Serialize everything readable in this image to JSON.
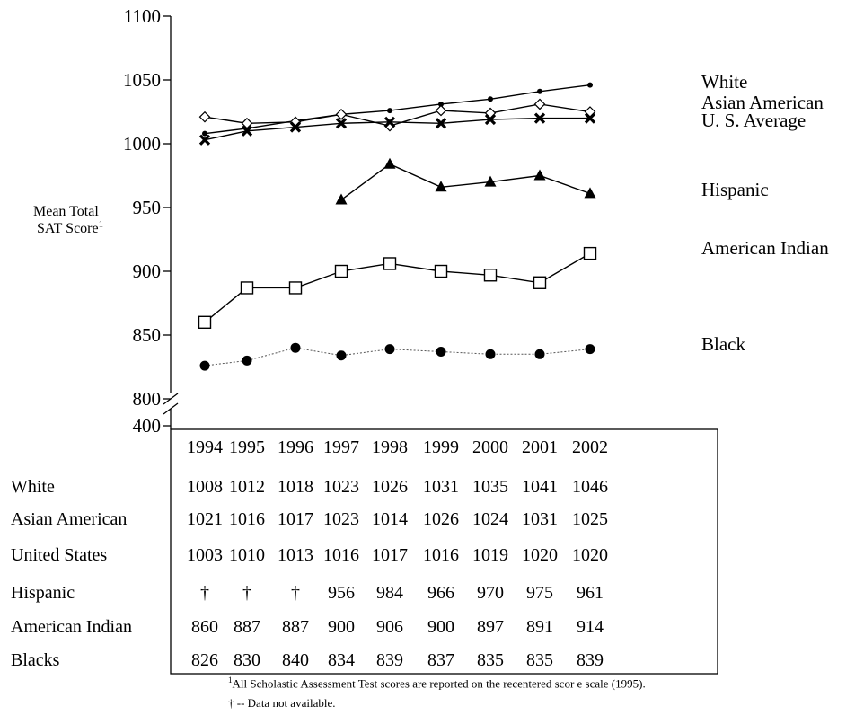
{
  "chart_data": {
    "type": "line",
    "ylabel_line1": "Mean Total",
    "ylabel_line2": "SAT Score",
    "ylabel_sup": "1",
    "ylim": [
      800,
      1100
    ],
    "yticks": [
      800,
      850,
      900,
      950,
      1000,
      1050,
      1100
    ],
    "ybreak_label": "400",
    "grid": false,
    "categories": [
      "1994",
      "1995",
      "1996",
      "1997",
      "1998",
      "1999",
      "2000",
      "2001",
      "2002"
    ],
    "series": [
      {
        "name": "White",
        "marker": "dot",
        "values": [
          1008,
          1012,
          1018,
          1023,
          1026,
          1031,
          1035,
          1041,
          1046
        ]
      },
      {
        "name": "Asian American",
        "marker": "diamond",
        "values": [
          1021,
          1016,
          1017,
          1023,
          1014,
          1026,
          1024,
          1031,
          1025
        ]
      },
      {
        "name": "U. S. Average",
        "marker": "x",
        "values": [
          1003,
          1010,
          1013,
          1016,
          1017,
          1016,
          1019,
          1020,
          1020
        ]
      },
      {
        "name": "Hispanic",
        "marker": "triangle",
        "values": [
          null,
          null,
          null,
          956,
          984,
          966,
          970,
          975,
          961
        ]
      },
      {
        "name": "American Indian",
        "marker": "square",
        "values": [
          860,
          887,
          887,
          900,
          906,
          900,
          897,
          891,
          914
        ]
      },
      {
        "name": "Black",
        "marker": "circle",
        "dotted": true,
        "values": [
          826,
          830,
          840,
          834,
          839,
          837,
          835,
          835,
          839
        ]
      }
    ],
    "table": {
      "header": [
        "1994",
        "1995",
        "1996",
        "1997",
        "1998",
        "1999",
        "2000",
        "2001",
        "2002"
      ],
      "rows": [
        {
          "label": "White",
          "cells": [
            "1008",
            "1012",
            "1018",
            "1023",
            "1026",
            "1031",
            "1035",
            "1041",
            "1046"
          ]
        },
        {
          "label": "Asian American",
          "cells": [
            "1021",
            "1016",
            "1017",
            "1023",
            "1014",
            "1026",
            "1024",
            "1031",
            "1025"
          ]
        },
        {
          "label": "United States",
          "cells": [
            "1003",
            "1010",
            "1013",
            "1016",
            "1017",
            "1016",
            "1019",
            "1020",
            "1020"
          ]
        },
        {
          "label": "Hispanic",
          "cells": [
            "†",
            "†",
            "†",
            "956",
            "984",
            "966",
            "970",
            "975",
            "961"
          ]
        },
        {
          "label": "American Indian",
          "cells": [
            "860",
            "887",
            "887",
            "900",
            "906",
            "900",
            "897",
            "891",
            "914"
          ]
        },
        {
          "label": "Blacks",
          "cells": [
            "826",
            "830",
            "840",
            "834",
            "839",
            "837",
            "835",
            "835",
            "839"
          ]
        }
      ]
    }
  },
  "footnotes": {
    "note1_sup": "1",
    "note1": "All Scholastic Assessment Test scores are reported on the recentered scor e scale (1995).",
    "note2": "† -- Data not available."
  }
}
